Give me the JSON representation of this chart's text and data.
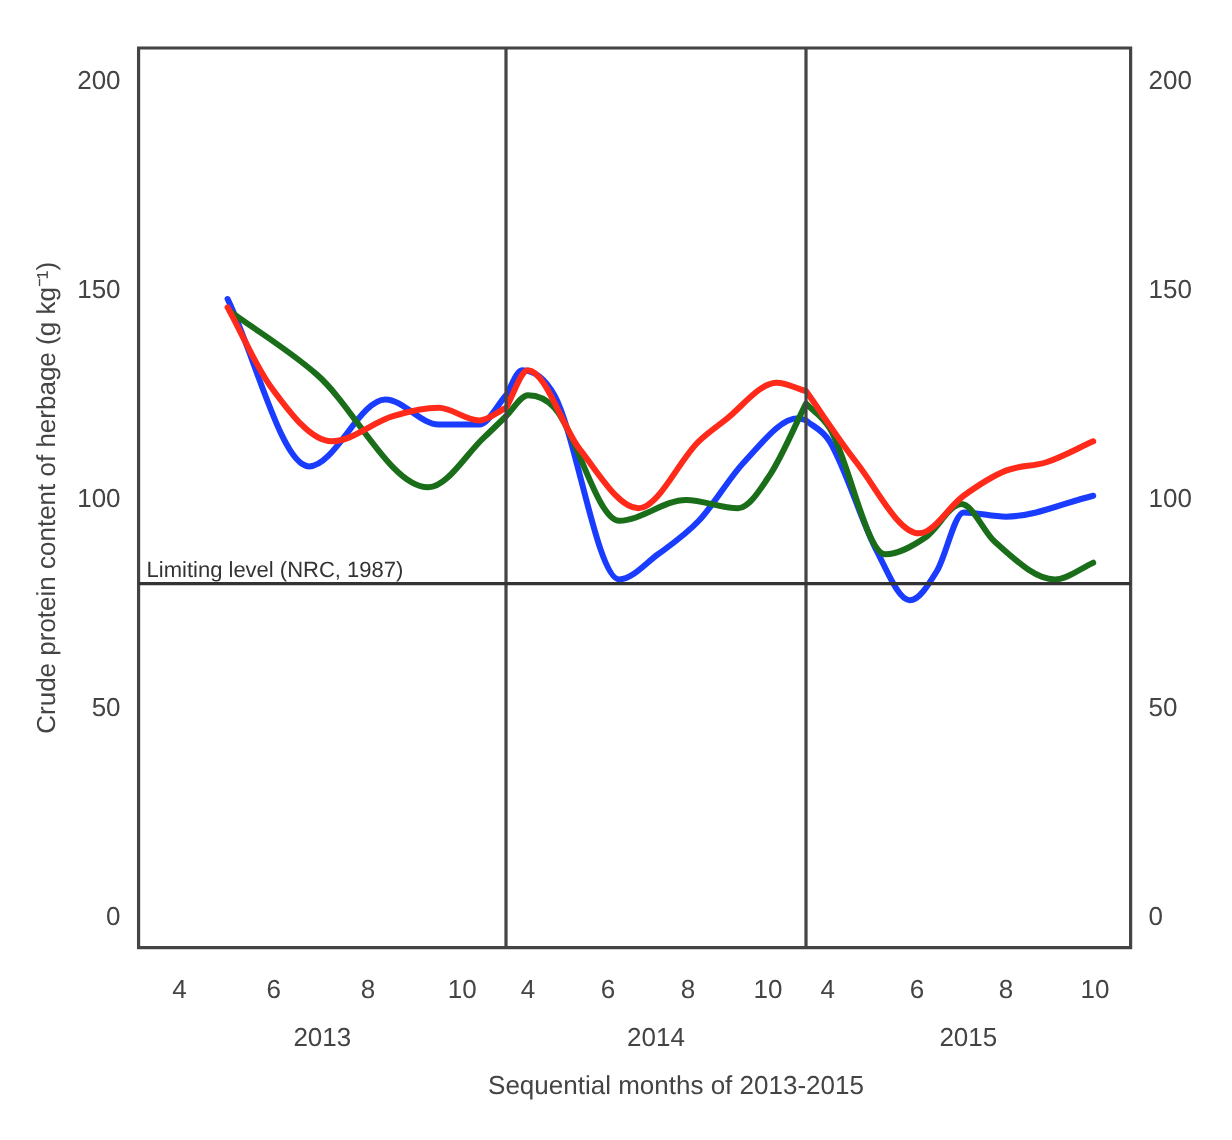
{
  "chart_data": [
    {
      "type": "line",
      "xlabel": "2013",
      "ylabel": "Crude protein content of herbage (g kg⁻¹)",
      "xlim": [
        3.13,
        10.93
      ],
      "xticks": [
        4,
        6,
        8,
        10
      ],
      "ylim": [
        -7,
        208
      ],
      "yticks": [
        0,
        50,
        100,
        150,
        200
      ],
      "grid": false,
      "legend": false,
      "marker": "none",
      "line_style": "solid",
      "series": [
        {
          "color": "#ff2a1a",
          "x": [
            5.02,
            5.94,
            7.23,
            8.53,
            9.5,
            10.36,
            10.93
          ],
          "values": [
            146,
            127,
            114,
            120,
            122,
            119,
            122
          ]
        },
        {
          "color": "#1a6e1a",
          "x": [
            5.08,
            6.91,
            9.28,
            10.47,
            10.93
          ],
          "values": [
            145,
            130,
            103,
            115,
            120
          ]
        },
        {
          "color": "#1a3cff",
          "x": [
            5.02,
            6.75,
            8.37,
            9.5,
            10.36,
            10.93
          ],
          "values": [
            148,
            108,
            124,
            118,
            118,
            125
          ]
        }
      ],
      "ref_lines": [
        {
          "axis": "y",
          "value": 80,
          "label": "Limiting level (NRC, 1987)",
          "color": "#333333"
        }
      ]
    },
    {
      "type": "line",
      "xlabel": "2014",
      "xlim": [
        3.45,
        10.95
      ],
      "xticks": [
        4,
        6,
        8,
        10
      ],
      "ylim": [
        -7,
        208
      ],
      "tick_labels": "x",
      "grid": false,
      "legend": false,
      "marker": "none",
      "line_style": "solid",
      "series": [
        {
          "color": "#ff2a1a",
          "x": [
            3.45,
            4.0,
            5.3,
            6.76,
            8.27,
            8.92,
            10.22,
            10.95
          ],
          "values": [
            122,
            131,
            112,
            98,
            114,
            119,
            128,
            126
          ]
        },
        {
          "color": "#1a6e1a",
          "x": [
            3.45,
            4.0,
            4.66,
            6.28,
            7.95,
            9.25,
            10.05,
            10.95
          ],
          "values": [
            120,
            125,
            122,
            95,
            100,
            98,
            106,
            123
          ]
        },
        {
          "color": "#1a3cff",
          "x": [
            3.45,
            3.85,
            4.66,
            6.28,
            7.25,
            8.27,
            9.4,
            10.75,
            10.95
          ],
          "values": [
            125,
            131,
            125,
            81,
            87,
            95,
            109,
            119.5,
            119
          ]
        }
      ],
      "ref_lines": [
        {
          "axis": "y",
          "value": 80,
          "color": "#333333"
        }
      ],
      "annotations": [
        "Sequential months of 2013-2015"
      ]
    },
    {
      "type": "line",
      "xlabel": "2015",
      "xlim": [
        3.51,
        10.8
      ],
      "xticks": [
        4,
        6,
        8,
        10
      ],
      "y2lim": [
        -7,
        208
      ],
      "y2ticks": [
        0,
        50,
        100,
        150,
        200
      ],
      "grid": false,
      "legend": false,
      "marker": "none",
      "line_style": "solid",
      "series": [
        {
          "axis": "y2",
          "color": "#ff2a1a",
          "x": [
            3.51,
            4.64,
            6.05,
            7.05,
            8.0,
            8.91,
            9.96
          ],
          "values": [
            126,
            109,
            92,
            101,
            107,
            109,
            114
          ]
        },
        {
          "axis": "y2",
          "color": "#1a6e1a",
          "x": [
            3.51,
            4.05,
            5.29,
            6.19,
            7.0,
            7.75,
            9.1,
            9.96
          ],
          "values": [
            123,
            117,
            87,
            91,
            99,
            90,
            81,
            85
          ]
        },
        {
          "axis": "y2",
          "color": "#1a3cff",
          "x": [
            3.51,
            4.04,
            5.09,
            5.84,
            6.45,
            7.05,
            8.0,
            9.96
          ],
          "values": [
            119,
            114,
            88,
            76,
            83,
            97,
            96,
            101
          ]
        }
      ],
      "ref_lines": [
        {
          "axis": "y2",
          "value": 80,
          "color": "#333333"
        }
      ]
    }
  ]
}
